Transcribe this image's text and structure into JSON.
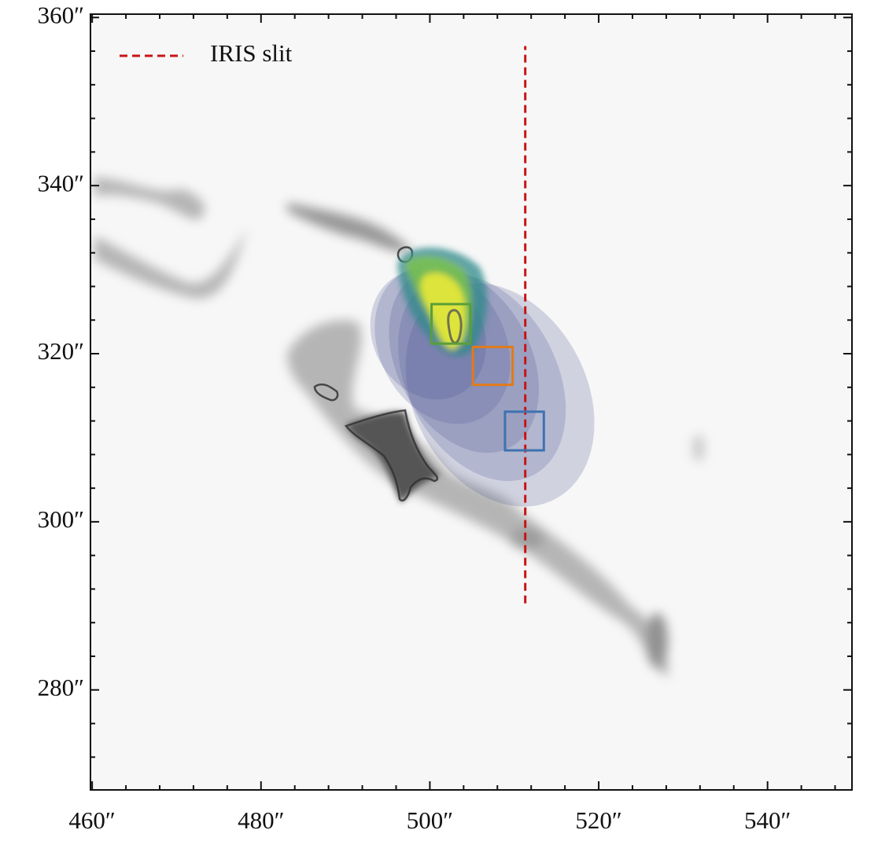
{
  "chart_data": {
    "type": "image",
    "xlim": [
      459.8,
      550.0
    ],
    "ylim": [
      268.1,
      360.4
    ],
    "xticks": [
      {
        "value": 460,
        "label": "460″"
      },
      {
        "value": 480,
        "label": "480″"
      },
      {
        "value": 500,
        "label": "500″"
      },
      {
        "value": 520,
        "label": "520″"
      },
      {
        "value": 540,
        "label": "540″"
      }
    ],
    "yticks": [
      {
        "value": 280,
        "label": "280″"
      },
      {
        "value": 300,
        "label": "300″"
      },
      {
        "value": 320,
        "label": "320″"
      },
      {
        "value": 340,
        "label": "340″"
      },
      {
        "value": 360,
        "label": "360″"
      }
    ],
    "minor_tick_step": 4,
    "series": [
      {
        "name": "IRIS slit",
        "color": "#c81414",
        "x": 511.3,
        "y": [
          290.3,
          356.6
        ]
      }
    ],
    "boxes": [
      {
        "color": "#5a9e3a",
        "x": [
          500.2,
          504.8
        ],
        "y": [
          321.2,
          325.9
        ]
      },
      {
        "color": "#e07b1a",
        "x": [
          505.1,
          509.8
        ],
        "y": [
          316.3,
          320.8
        ]
      },
      {
        "color": "#3f72b0",
        "x": [
          508.9,
          513.5
        ],
        "y": [
          308.5,
          313.1
        ]
      }
    ],
    "legend": "upper left"
  }
}
